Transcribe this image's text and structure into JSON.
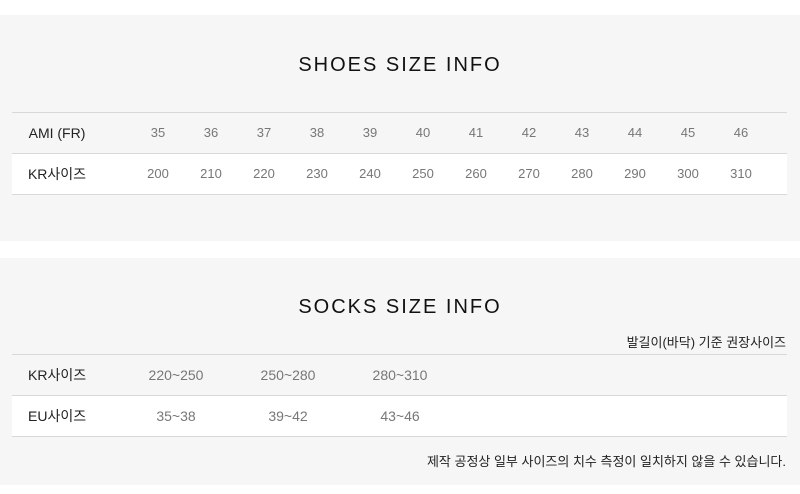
{
  "shoes": {
    "title": "SHOES SIZE INFO",
    "rows": [
      {
        "label": "AMI (FR)",
        "values": [
          "35",
          "36",
          "37",
          "38",
          "39",
          "40",
          "41",
          "42",
          "43",
          "44",
          "45",
          "46"
        ]
      },
      {
        "label": "KR사이즈",
        "values": [
          "200",
          "210",
          "220",
          "230",
          "240",
          "250",
          "260",
          "270",
          "280",
          "290",
          "300",
          "310"
        ]
      }
    ]
  },
  "socks": {
    "title": "SOCKS SIZE INFO",
    "note": "발길이(바닥) 기준 권장사이즈",
    "rows": [
      {
        "label": "KR사이즈",
        "values": [
          "220~250",
          "250~280",
          "280~310"
        ]
      },
      {
        "label": "EU사이즈",
        "values": [
          "35~38",
          "39~42",
          "43~46"
        ]
      }
    ],
    "footnote": "제작 공정상 일부 사이즈의 치수 측정이 일치하지 않을 수 있습니다."
  }
}
